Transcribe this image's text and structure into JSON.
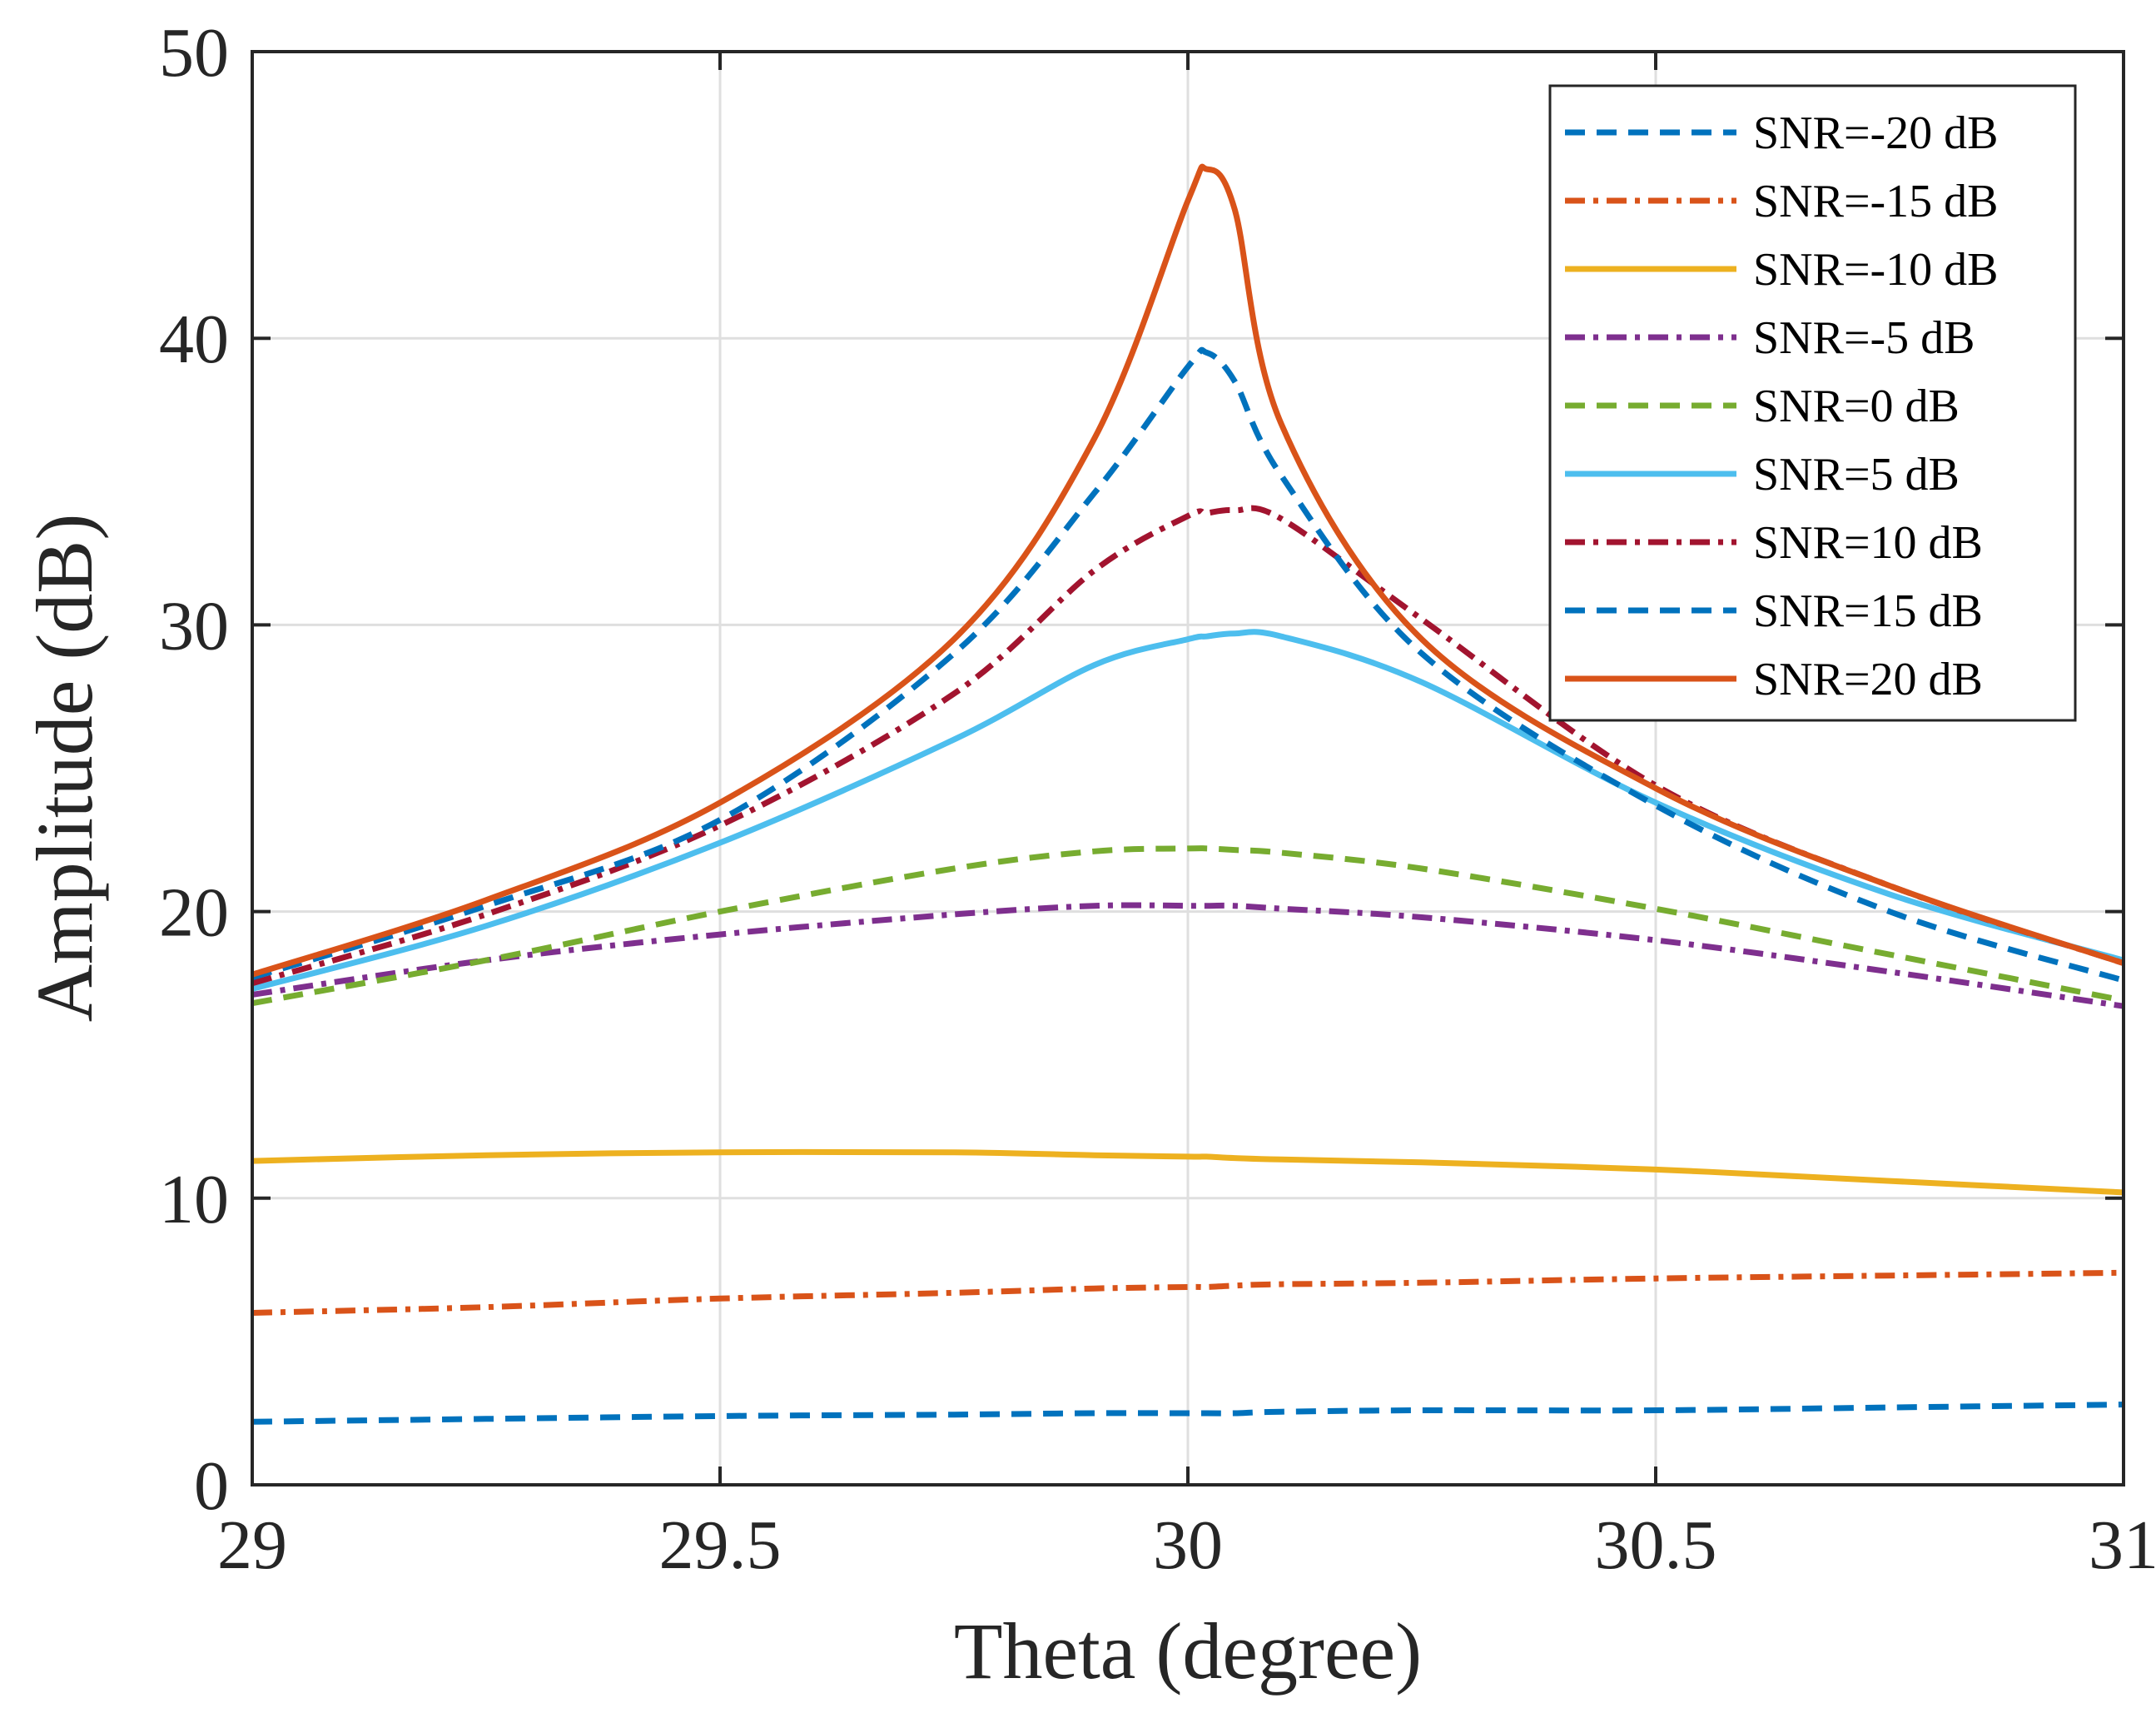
{
  "chart_data": {
    "type": "line",
    "title": "",
    "xlabel": "Theta (degree)",
    "ylabel": "Amplitude (dB)",
    "xlim": [
      29,
      31
    ],
    "ylim": [
      0,
      50
    ],
    "xticks": [
      29,
      29.5,
      30,
      30.5,
      31
    ],
    "xtick_labels": [
      "29",
      "29.5",
      "30",
      "30.5",
      "31"
    ],
    "yticks": [
      0,
      10,
      20,
      30,
      40,
      50
    ],
    "ytick_labels": [
      "0",
      "10",
      "20",
      "30",
      "40",
      "50"
    ],
    "grid": true,
    "legend_position": "top-right",
    "x": [
      29,
      29.25,
      29.5,
      29.75,
      29.9,
      30,
      30.02,
      30.05,
      30.1,
      30.25,
      30.5,
      30.75,
      31
    ],
    "series": [
      {
        "name": "SNR=-20 dB",
        "color": "#0072BD",
        "dash": "dash",
        "values": [
          2.2,
          2.3,
          2.4,
          2.45,
          2.5,
          2.5,
          2.5,
          2.5,
          2.55,
          2.6,
          2.6,
          2.7,
          2.8
        ]
      },
      {
        "name": "SNR=-15 dB",
        "color": "#D95319",
        "dash": "dashdot",
        "values": [
          6.0,
          6.2,
          6.5,
          6.7,
          6.85,
          6.9,
          6.9,
          6.95,
          7.0,
          7.05,
          7.2,
          7.3,
          7.4
        ]
      },
      {
        "name": "SNR=-10 dB",
        "color": "#EDB120",
        "dash": "solid",
        "values": [
          11.3,
          11.5,
          11.6,
          11.6,
          11.5,
          11.45,
          11.45,
          11.4,
          11.35,
          11.25,
          11.0,
          10.6,
          10.2
        ]
      },
      {
        "name": "SNR=-5 dB",
        "color": "#7E2F8E",
        "dash": "dashdot",
        "values": [
          17.1,
          18.3,
          19.2,
          19.9,
          20.2,
          20.2,
          20.2,
          20.2,
          20.1,
          19.8,
          19.0,
          17.9,
          16.7
        ]
      },
      {
        "name": "SNR=0 dB",
        "color": "#77AC30",
        "dash": "dash",
        "values": [
          16.8,
          18.3,
          20.0,
          21.5,
          22.1,
          22.2,
          22.2,
          22.15,
          22.05,
          21.5,
          20.1,
          18.5,
          16.9
        ]
      },
      {
        "name": "SNR=5 dB",
        "color": "#4DBEEE",
        "dash": "solid",
        "values": [
          17.3,
          19.5,
          22.4,
          26.0,
          28.6,
          29.5,
          29.6,
          29.7,
          29.6,
          28.0,
          23.8,
          20.6,
          18.3
        ]
      },
      {
        "name": "SNR=10 dB",
        "color": "#A2142F",
        "dash": "dashdot",
        "values": [
          17.5,
          19.9,
          23.0,
          27.6,
          31.9,
          33.8,
          33.9,
          34.0,
          33.7,
          30.2,
          24.4,
          20.9,
          18.2
        ]
      },
      {
        "name": "SNR=15 dB",
        "color": "#0072BD",
        "dash": "dash",
        "values": [
          17.7,
          20.2,
          23.2,
          29.0,
          34.6,
          39.0,
          39.5,
          38.5,
          35.2,
          29.0,
          23.7,
          20.0,
          17.6
        ]
      },
      {
        "name": "SNR=20 dB",
        "color": "#D95319",
        "dash": "solid",
        "values": [
          17.8,
          20.4,
          23.8,
          29.5,
          36.5,
          44.8,
          45.9,
          44.5,
          37.0,
          29.5,
          24.3,
          20.9,
          18.2
        ]
      }
    ]
  }
}
